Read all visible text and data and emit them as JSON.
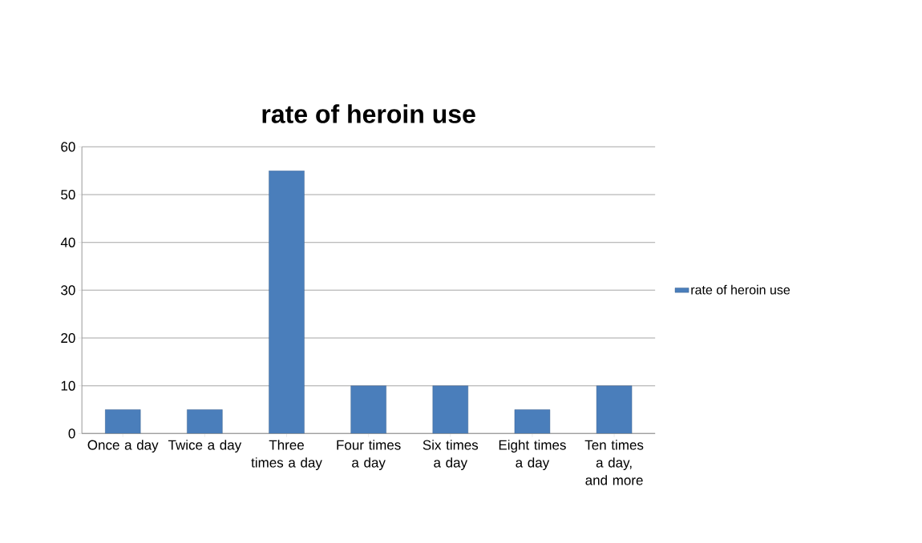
{
  "chart_data": {
    "type": "bar",
    "title": "rate of heroin use",
    "categories": [
      "Once a day",
      "Twice a day",
      "Three times a day",
      "Four times a day",
      "Six times a day",
      "Eight times a day",
      "Ten times a day, and more"
    ],
    "series": [
      {
        "name": "rate of heroin use",
        "color": "#4a7ebb",
        "values": [
          5,
          5,
          55,
          10,
          10,
          5,
          10
        ]
      }
    ],
    "ylim": [
      0,
      60
    ],
    "yticks": [
      0,
      10,
      20,
      30,
      40,
      50,
      60
    ],
    "grid": "y",
    "legend": "right"
  }
}
